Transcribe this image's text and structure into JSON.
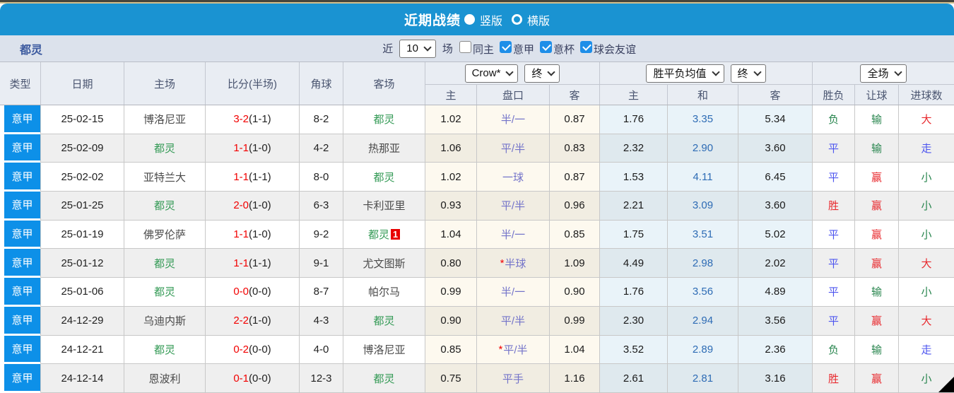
{
  "title_bar": {
    "title": "近期战绩",
    "radios": [
      {
        "label": "竖版",
        "selected": true
      },
      {
        "label": "横版",
        "selected": false
      }
    ]
  },
  "filter_bar": {
    "team": "都灵",
    "near_label": "近",
    "count_select": "10",
    "games_label": "场",
    "checkboxes": [
      {
        "label": "同主",
        "checked": false
      },
      {
        "label": "意甲",
        "checked": true
      },
      {
        "label": "意杯",
        "checked": true
      },
      {
        "label": "球会友谊",
        "checked": true
      }
    ]
  },
  "table": {
    "columns": [
      "类型",
      "日期",
      "主场",
      "比分(半场)",
      "角球",
      "客场"
    ],
    "odds_group": {
      "company_select": "Crow*",
      "final_select": "终",
      "sub": [
        "主",
        "盘口",
        "客"
      ]
    },
    "avg_group": {
      "select": "胜平负均值",
      "final_select": "终",
      "sub": [
        "主",
        "和",
        "客"
      ]
    },
    "result_group": {
      "select": "全场",
      "sub": [
        "胜负",
        "让球",
        "进球数"
      ]
    },
    "rows": [
      {
        "league": "意甲",
        "date": "25-02-15",
        "home": "博洛尼亚",
        "score_ft": "3-2",
        "score_ht": "(1-1)",
        "corners": "8-2",
        "away": "都灵",
        "away_badge": "",
        "odds_home": "1.02",
        "handicap": "半/一",
        "handicap_star": false,
        "odds_away": "0.87",
        "avg_home": "1.76",
        "avg_draw": "3.35",
        "avg_away": "5.34",
        "result": "负",
        "handicap_result": "输",
        "goals_result": "大"
      },
      {
        "league": "意甲",
        "date": "25-02-09",
        "home": "都灵",
        "score_ft": "1-1",
        "score_ht": "(1-0)",
        "corners": "4-2",
        "away": "热那亚",
        "away_badge": "",
        "odds_home": "1.06",
        "handicap": "平/半",
        "handicap_star": false,
        "odds_away": "0.83",
        "avg_home": "2.32",
        "avg_draw": "2.90",
        "avg_away": "3.60",
        "result": "平",
        "handicap_result": "输",
        "goals_result": "走"
      },
      {
        "league": "意甲",
        "date": "25-02-02",
        "home": "亚特兰大",
        "score_ft": "1-1",
        "score_ht": "(1-1)",
        "corners": "8-0",
        "away": "都灵",
        "away_badge": "",
        "odds_home": "1.02",
        "handicap": "一球",
        "handicap_star": false,
        "odds_away": "0.87",
        "avg_home": "1.53",
        "avg_draw": "4.11",
        "avg_away": "6.45",
        "result": "平",
        "handicap_result": "赢",
        "goals_result": "小"
      },
      {
        "league": "意甲",
        "date": "25-01-25",
        "home": "都灵",
        "score_ft": "2-0",
        "score_ht": "(1-0)",
        "corners": "6-3",
        "away": "卡利亚里",
        "away_badge": "",
        "odds_home": "0.93",
        "handicap": "平/半",
        "handicap_star": false,
        "odds_away": "0.96",
        "avg_home": "2.21",
        "avg_draw": "3.09",
        "avg_away": "3.60",
        "result": "胜",
        "handicap_result": "赢",
        "goals_result": "小"
      },
      {
        "league": "意甲",
        "date": "25-01-19",
        "home": "佛罗伦萨",
        "score_ft": "1-1",
        "score_ht": "(1-0)",
        "corners": "9-2",
        "away": "都灵",
        "away_badge": "1",
        "odds_home": "1.04",
        "handicap": "半/一",
        "handicap_star": false,
        "odds_away": "0.85",
        "avg_home": "1.75",
        "avg_draw": "3.51",
        "avg_away": "5.02",
        "result": "平",
        "handicap_result": "赢",
        "goals_result": "小"
      },
      {
        "league": "意甲",
        "date": "25-01-12",
        "home": "都灵",
        "score_ft": "1-1",
        "score_ht": "(1-1)",
        "corners": "9-1",
        "away": "尤文图斯",
        "away_badge": "",
        "odds_home": "0.80",
        "handicap": "半球",
        "handicap_star": true,
        "odds_away": "1.09",
        "avg_home": "4.49",
        "avg_draw": "2.98",
        "avg_away": "2.02",
        "result": "平",
        "handicap_result": "赢",
        "goals_result": "大"
      },
      {
        "league": "意甲",
        "date": "25-01-06",
        "home": "都灵",
        "score_ft": "0-0",
        "score_ht": "(0-0)",
        "corners": "8-7",
        "away": "帕尔马",
        "away_badge": "",
        "odds_home": "0.99",
        "handicap": "半/一",
        "handicap_star": false,
        "odds_away": "0.90",
        "avg_home": "1.76",
        "avg_draw": "3.56",
        "avg_away": "4.89",
        "result": "平",
        "handicap_result": "输",
        "goals_result": "小"
      },
      {
        "league": "意甲",
        "date": "24-12-29",
        "home": "乌迪内斯",
        "score_ft": "2-2",
        "score_ht": "(1-0)",
        "corners": "4-3",
        "away": "都灵",
        "away_badge": "",
        "odds_home": "0.90",
        "handicap": "平/半",
        "handicap_star": false,
        "odds_away": "0.99",
        "avg_home": "2.30",
        "avg_draw": "2.94",
        "avg_away": "3.56",
        "result": "平",
        "handicap_result": "赢",
        "goals_result": "大"
      },
      {
        "league": "意甲",
        "date": "24-12-21",
        "home": "都灵",
        "score_ft": "0-2",
        "score_ht": "(0-0)",
        "corners": "4-0",
        "away": "博洛尼亚",
        "away_badge": "",
        "odds_home": "0.85",
        "handicap": "平/半",
        "handicap_star": true,
        "odds_away": "1.04",
        "avg_home": "3.52",
        "avg_draw": "2.89",
        "avg_away": "2.36",
        "result": "负",
        "handicap_result": "输",
        "goals_result": "走"
      },
      {
        "league": "意甲",
        "date": "24-12-14",
        "home": "恩波利",
        "score_ft": "0-1",
        "score_ht": "(0-0)",
        "corners": "12-3",
        "away": "都灵",
        "away_badge": "",
        "odds_home": "0.75",
        "handicap": "平手",
        "handicap_star": false,
        "odds_away": "1.16",
        "avg_home": "2.61",
        "avg_draw": "2.81",
        "avg_away": "3.16",
        "result": "胜",
        "handicap_result": "赢",
        "goals_result": "小"
      }
    ]
  },
  "colors": {
    "titlebar_blue": "#1a93d2",
    "league_blue": "#0d90e8",
    "win_red": "#e8282d",
    "draw_blue": "#4d55ef",
    "lose_green": "#28854e",
    "torino_green": "#339a55"
  }
}
